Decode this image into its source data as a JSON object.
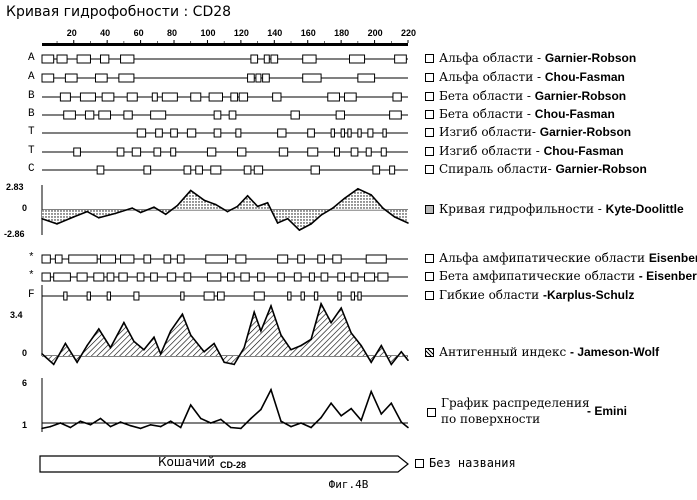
{
  "title": "Кривая гидрофобности : CD28",
  "caption": "Фиг.4B",
  "ruler": {
    "ticks": [
      "20",
      "40",
      "60",
      "80",
      "100",
      "120",
      "140",
      "160",
      "180",
      "200",
      "220"
    ]
  },
  "tracks": [
    {
      "letter": "A",
      "label": "Альфа области - ",
      "method": "Garnier-Robson",
      "segs": [
        [
          1,
          8
        ],
        [
          10,
          16
        ],
        [
          22,
          30
        ],
        [
          36,
          41
        ],
        [
          48,
          56
        ],
        [
          126,
          130
        ],
        [
          134,
          137
        ],
        [
          138,
          142
        ],
        [
          157,
          165
        ],
        [
          185,
          194
        ],
        [
          212,
          219
        ]
      ]
    },
    {
      "letter": "A",
      "label": "Альфа области - ",
      "method": "Chou-Fasman",
      "segs": [
        [
          1,
          8
        ],
        [
          15,
          22
        ],
        [
          33,
          40
        ],
        [
          47,
          56
        ],
        [
          124,
          128
        ],
        [
          129,
          132
        ],
        [
          133,
          137
        ],
        [
          157,
          168
        ],
        [
          190,
          200
        ]
      ]
    },
    {
      "letter": "B",
      "label": "Бета области - ",
      "method": "Garnier-Robson",
      "segs": [
        [
          12,
          18
        ],
        [
          24,
          33
        ],
        [
          37,
          44
        ],
        [
          52,
          58
        ],
        [
          67,
          70
        ],
        [
          73,
          82
        ],
        [
          90,
          96
        ],
        [
          101,
          109
        ],
        [
          114,
          118
        ],
        [
          119,
          124
        ],
        [
          139,
          144
        ],
        [
          172,
          179
        ],
        [
          182,
          189
        ],
        [
          211,
          216
        ]
      ]
    },
    {
      "letter": "B",
      "label": "Бета области - ",
      "method": "Chou-Fasman",
      "segs": [
        [
          14,
          21
        ],
        [
          27,
          32
        ],
        [
          35,
          42
        ],
        [
          50,
          55
        ],
        [
          66,
          75
        ],
        [
          104,
          108
        ],
        [
          113,
          117
        ],
        [
          150,
          155
        ],
        [
          177,
          182
        ],
        [
          209,
          216
        ]
      ]
    },
    {
      "letter": "T",
      "label": "Изгиб области- ",
      "method": "Garnier-Robson",
      "segs": [
        [
          58,
          63
        ],
        [
          69,
          73
        ],
        [
          78,
          82
        ],
        [
          88,
          93
        ],
        [
          104,
          108
        ],
        [
          117,
          120
        ],
        [
          142,
          147
        ],
        [
          160,
          164
        ],
        [
          174,
          176
        ],
        [
          180,
          182
        ],
        [
          184,
          186
        ],
        [
          190,
          192
        ],
        [
          196,
          199
        ],
        [
          205,
          207
        ]
      ]
    },
    {
      "letter": "T",
      "label": "Изгиб области - ",
      "method": "Chou-Fasman",
      "segs": [
        [
          20,
          24
        ],
        [
          46,
          50
        ],
        [
          55,
          60
        ],
        [
          68,
          72
        ],
        [
          78,
          81
        ],
        [
          100,
          105
        ],
        [
          118,
          123
        ],
        [
          143,
          148
        ],
        [
          160,
          166
        ],
        [
          176,
          179
        ],
        [
          186,
          190
        ],
        [
          195,
          198
        ],
        [
          204,
          207
        ]
      ]
    },
    {
      "letter": "C",
      "label": "Спираль области- ",
      "method": "Garnier-Robson",
      "segs": [
        [
          34,
          38
        ],
        [
          62,
          66
        ],
        [
          86,
          90
        ],
        [
          93,
          97
        ],
        [
          102,
          108
        ],
        [
          122,
          126
        ],
        [
          128,
          133
        ],
        [
          162,
          167
        ],
        [
          199,
          203
        ],
        [
          209,
          212
        ]
      ]
    }
  ],
  "hydro": {
    "label": "Кривая гидрофильности - ",
    "method": "Kyte-Doolittle",
    "ymax": "2.83",
    "yzero": "0",
    "ymin": "-2.86",
    "max": 2.83,
    "min": -2.86
  },
  "amphi": [
    {
      "letter": "*",
      "label": "Альфа амфипатические области ",
      "method": "Eisenberg",
      "segs": [
        [
          1,
          6
        ],
        [
          9,
          13
        ],
        [
          17,
          34
        ],
        [
          36,
          45
        ],
        [
          48,
          56
        ],
        [
          62,
          66
        ],
        [
          74,
          78
        ],
        [
          82,
          86
        ],
        [
          99,
          112
        ],
        [
          117,
          123
        ],
        [
          142,
          148
        ],
        [
          154,
          158
        ],
        [
          166,
          170
        ],
        [
          175,
          180
        ],
        [
          195,
          207
        ]
      ]
    },
    {
      "letter": "*",
      "label": "Бета амфипатические области ",
      "method": "- Eisenberg",
      "segs": [
        [
          1,
          6
        ],
        [
          8,
          18
        ],
        [
          22,
          28
        ],
        [
          32,
          38
        ],
        [
          40,
          44
        ],
        [
          47,
          52
        ],
        [
          58,
          62
        ],
        [
          66,
          70
        ],
        [
          76,
          81
        ],
        [
          86,
          90
        ],
        [
          100,
          108
        ],
        [
          112,
          116
        ],
        [
          120,
          125
        ],
        [
          130,
          134
        ],
        [
          142,
          146
        ],
        [
          152,
          156
        ],
        [
          161,
          164
        ],
        [
          168,
          172
        ],
        [
          178,
          182
        ],
        [
          186,
          190
        ],
        [
          194,
          200
        ],
        [
          202,
          208
        ]
      ]
    },
    {
      "letter": "F",
      "label": "Гибкие области ",
      "method": "-Karplus-Schulz",
      "segs": [
        [
          14,
          16
        ],
        [
          28,
          30
        ],
        [
          40,
          42
        ],
        [
          56,
          59
        ],
        [
          84,
          86
        ],
        [
          98,
          104
        ],
        [
          106,
          110
        ],
        [
          128,
          134
        ],
        [
          148,
          150
        ],
        [
          156,
          158
        ],
        [
          164,
          166
        ],
        [
          178,
          180
        ],
        [
          186,
          188
        ],
        [
          190,
          192
        ]
      ]
    }
  ],
  "antigen": {
    "label": "Антигенный индекс ",
    "method": "- Jameson-Wolf",
    "ymax": "3.4",
    "yzero": "0",
    "max": 3.4
  },
  "surface": {
    "label_line1": "График распределения",
    "label_line2": "по поверхности",
    "method": "- Emini",
    "ymax": "6",
    "ymin": "1",
    "max": 6
  },
  "sequence": {
    "label": "Без названия",
    "arrow_text": "Кошачий",
    "arrow_sub": "CD-28"
  },
  "chart_data": [
    {
      "type": "area",
      "ylabel": "Kyte-Doolittle",
      "ylim": [
        -2.86,
        2.83
      ],
      "x": [
        1,
        10,
        20,
        28,
        35,
        45,
        55,
        60,
        68,
        75,
        82,
        90,
        98,
        105,
        112,
        118,
        124,
        130,
        136,
        142,
        148,
        155,
        162,
        168,
        175,
        182,
        190,
        198,
        205,
        212,
        220
      ],
      "y": [
        -1.0,
        -1.6,
        -0.8,
        -0.2,
        -0.9,
        -0.4,
        0.2,
        -0.3,
        0.3,
        -0.5,
        0.5,
        2.2,
        1.1,
        0.6,
        -0.2,
        0.4,
        1.6,
        0.4,
        0.8,
        -1.5,
        -1.0,
        -2.3,
        -1.6,
        -0.6,
        0.2,
        1.3,
        2.4,
        1.7,
        0.2,
        -0.8,
        -1.5
      ]
    },
    {
      "type": "area",
      "ylabel": "Jameson-Wolf",
      "ylim": [
        0,
        3.4
      ],
      "x": [
        1,
        8,
        15,
        22,
        28,
        35,
        42,
        50,
        56,
        62,
        68,
        72,
        78,
        85,
        90,
        98,
        104,
        110,
        116,
        122,
        128,
        132,
        138,
        144,
        150,
        156,
        162,
        168,
        174,
        180,
        186,
        192,
        198,
        204,
        210,
        216,
        220
      ],
      "y": [
        0.1,
        -0.4,
        0.6,
        -0.3,
        0.5,
        1.3,
        0.4,
        1.6,
        0.7,
        0.3,
        0.9,
        0.1,
        1.2,
        2.0,
        1.0,
        0.2,
        0.6,
        -0.3,
        -0.4,
        0.4,
        2.1,
        1.2,
        2.4,
        1.0,
        0.3,
        0.5,
        0.8,
        2.5,
        1.6,
        2.3,
        1.1,
        0.5,
        -0.3,
        0.5,
        -0.4,
        0.2,
        -0.2
      ]
    },
    {
      "type": "line",
      "ylabel": "Emini",
      "ylim": [
        0,
        6
      ],
      "x": [
        1,
        6,
        12,
        18,
        24,
        30,
        36,
        42,
        48,
        54,
        60,
        66,
        72,
        78,
        84,
        90,
        96,
        102,
        108,
        114,
        120,
        126,
        132,
        138,
        144,
        150,
        156,
        162,
        168,
        174,
        180,
        186,
        192,
        198,
        204,
        210,
        216,
        220
      ],
      "y": [
        0.4,
        0.6,
        1.0,
        0.5,
        1.2,
        0.8,
        1.5,
        0.6,
        1.1,
        0.7,
        0.4,
        0.8,
        0.6,
        1.2,
        0.5,
        3.0,
        1.5,
        1.0,
        1.4,
        0.5,
        0.4,
        1.5,
        2.5,
        4.7,
        1.2,
        0.6,
        1.0,
        0.5,
        1.6,
        3.2,
        1.8,
        2.6,
        1.3,
        4.5,
        2.0,
        3.2,
        1.1,
        0.5
      ]
    }
  ]
}
